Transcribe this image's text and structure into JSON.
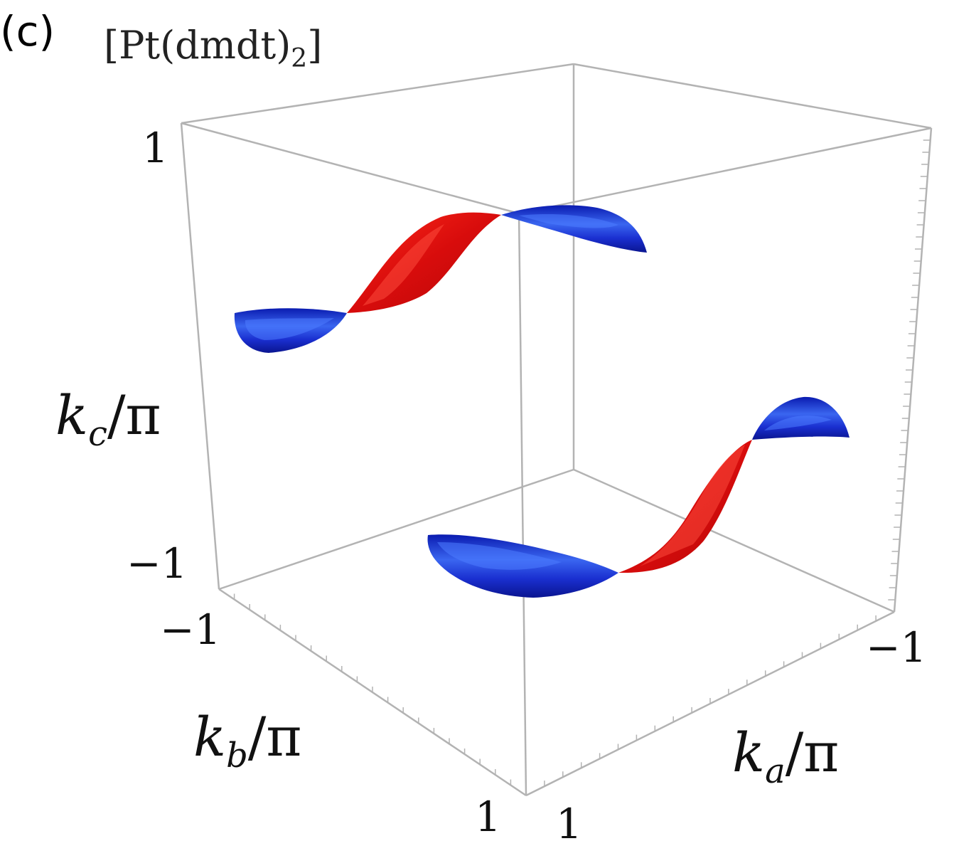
{
  "panel_label": "(c)",
  "title": {
    "main": "[Pt(dmdt)",
    "subscript": "2",
    "close": "]"
  },
  "axes": {
    "kc": {
      "symbol": "k",
      "subscript": "c",
      "slash": "/π",
      "ticks": [
        "1",
        "−1"
      ]
    },
    "kb": {
      "symbol": "k",
      "subscript": "b",
      "slash": "/π",
      "ticks": [
        "−1",
        "1"
      ]
    },
    "ka": {
      "symbol": "k",
      "subscript": "a",
      "slash": "/π",
      "ticks": [
        "−1",
        "1"
      ]
    }
  },
  "colors": {
    "positive_sheet": "#e01010",
    "negative_sheet": "#1a2fd0",
    "box": "#b3b3b3"
  },
  "surfaces": [
    {
      "name": "upper-sheet",
      "segments": [
        "negative",
        "positive",
        "negative"
      ]
    },
    {
      "name": "lower-sheet",
      "segments": [
        "negative",
        "positive",
        "negative"
      ]
    }
  ]
}
